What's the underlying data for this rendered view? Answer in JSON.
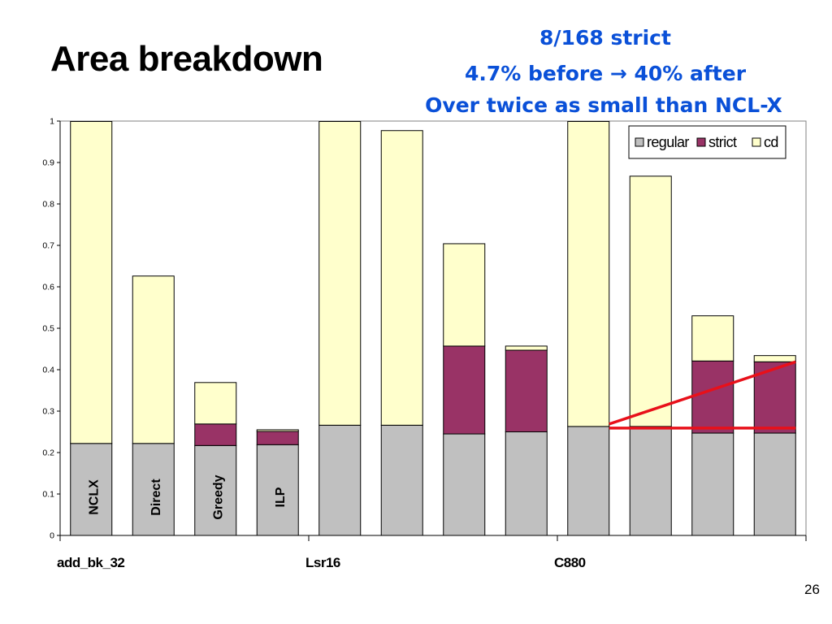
{
  "slide": {
    "title": "Area breakdown",
    "notes": [
      "8/168 strict",
      "4.7% before → 40% after",
      "Over twice as small than NCL-X"
    ],
    "page_number": "26"
  },
  "colors": {
    "regular": "#c0c0c0",
    "strict": "#993366",
    "cd": "#ffffcc",
    "annotation": "#0a50d8",
    "highlight_line": "#e8101a"
  },
  "chart_data": {
    "type": "bar",
    "stacked": true,
    "groups": [
      "add_bk_32",
      "Lsr16",
      "C880"
    ],
    "bar_labels": [
      "NCLX",
      "Direct",
      "Greedy",
      "ILP"
    ],
    "bars": [
      {
        "group": "add_bk_32",
        "label": "NCLX",
        "regular": 0.222,
        "strict": 0.0,
        "cd": 0.777
      },
      {
        "group": "add_bk_32",
        "label": "Direct",
        "regular": 0.222,
        "strict": 0.0,
        "cd": 0.404
      },
      {
        "group": "add_bk_32",
        "label": "Greedy",
        "regular": 0.217,
        "strict": 0.052,
        "cd": 0.1
      },
      {
        "group": "add_bk_32",
        "label": "ILP",
        "regular": 0.219,
        "strict": 0.032,
        "cd": 0.004
      },
      {
        "group": "Lsr16",
        "label": "",
        "regular": 0.266,
        "strict": 0.0,
        "cd": 0.733
      },
      {
        "group": "Lsr16",
        "label": "",
        "regular": 0.266,
        "strict": 0.0,
        "cd": 0.711
      },
      {
        "group": "Lsr16",
        "label": "",
        "regular": 0.245,
        "strict": 0.212,
        "cd": 0.247
      },
      {
        "group": "Lsr16",
        "label": "",
        "regular": 0.25,
        "strict": 0.197,
        "cd": 0.01
      },
      {
        "group": "C880",
        "label": "",
        "regular": 0.263,
        "strict": 0.0,
        "cd": 0.736
      },
      {
        "group": "C880",
        "label": "",
        "regular": 0.263,
        "strict": 0.0,
        "cd": 0.604
      },
      {
        "group": "C880",
        "label": "",
        "regular": 0.247,
        "strict": 0.174,
        "cd": 0.109
      },
      {
        "group": "C880",
        "label": "",
        "regular": 0.247,
        "strict": 0.172,
        "cd": 0.015
      }
    ],
    "series": [
      {
        "name": "regular",
        "key": "regular"
      },
      {
        "name": "strict",
        "key": "strict"
      },
      {
        "name": "cd",
        "key": "cd"
      }
    ],
    "ylim": [
      0,
      1
    ],
    "yticks": [
      "0",
      "0.1",
      "0.2",
      "0.3",
      "0.4",
      "0.5",
      "0.6",
      "0.7",
      "0.8",
      "0.9",
      "1"
    ],
    "legend_position": "top-right",
    "grid": false
  }
}
